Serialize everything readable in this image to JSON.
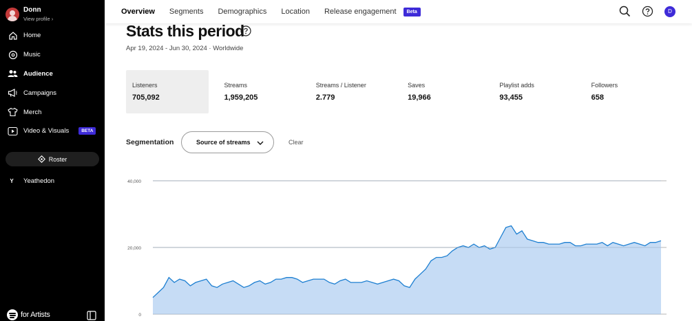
{
  "sidebar": {
    "profile": {
      "name": "Donn",
      "link": "View profile ›"
    },
    "items": [
      {
        "label": "Home",
        "icon": "home-icon"
      },
      {
        "label": "Music",
        "icon": "music-icon"
      },
      {
        "label": "Audience",
        "icon": "audience-icon"
      },
      {
        "label": "Campaigns",
        "icon": "megaphone-icon"
      },
      {
        "label": "Merch",
        "icon": "shirt-icon"
      },
      {
        "label": "Video & Visuals",
        "icon": "video-icon",
        "badge": "BETA"
      }
    ],
    "roster_label": "Roster",
    "artist": {
      "letter": "Y",
      "name": "Yeathedon"
    },
    "brand": "for Artists"
  },
  "topbar": {
    "tabs": [
      "Overview",
      "Segments",
      "Demographics",
      "Location",
      "Release engagement"
    ],
    "beta_badge": "Beta",
    "user_initial": "D"
  },
  "main": {
    "title": "Stats this period",
    "date_range": "Apr 19, 2024 - Jun 30, 2024 · Worldwide",
    "stats": [
      {
        "label": "Listeners",
        "value": "705,092"
      },
      {
        "label": "Streams",
        "value": "1,959,205"
      },
      {
        "label": "Streams / Listener",
        "value": "2.779"
      },
      {
        "label": "Saves",
        "value": "19,966"
      },
      {
        "label": "Playlist adds",
        "value": "93,455"
      },
      {
        "label": "Followers",
        "value": "658"
      }
    ],
    "segmentation": {
      "label": "Segmentation",
      "select_value": "Source of streams",
      "clear_label": "Clear"
    }
  },
  "colors": {
    "accent": "#3e2bd8",
    "series_line": "#1d7fd1",
    "series_fill": "#c6dcf5"
  },
  "chart_data": {
    "type": "area",
    "yticks": [
      "40,000",
      "20,000",
      "0"
    ],
    "ylim": [
      0,
      40000
    ],
    "grid": true,
    "series": [
      {
        "values": [
          5000,
          6500,
          8000,
          11000,
          9500,
          10500,
          10000,
          8500,
          9500,
          10000,
          10500,
          8500,
          8000,
          9000,
          9500,
          10000,
          9000,
          8000,
          8500,
          9500,
          10000,
          9000,
          9500,
          10500,
          10500,
          11000,
          11000,
          10500,
          9500,
          10000,
          10500,
          10500,
          10500,
          9500,
          9000,
          10000,
          10500,
          9500,
          9500,
          9500,
          10000,
          9500,
          9000,
          9500,
          10000,
          10500,
          10000,
          8500,
          8000,
          10500,
          12000,
          13500,
          16000,
          17000,
          17000,
          17500,
          19000,
          20000,
          20500,
          20000,
          21000,
          20000,
          20500,
          19500,
          20000,
          23000,
          26000,
          26500,
          24000,
          25000,
          22500,
          22000,
          21500,
          21500,
          21000,
          21000,
          21000,
          21500,
          21500,
          20500,
          20500,
          21000,
          21000,
          21000,
          21500,
          20500,
          21500,
          21000,
          20500,
          21000,
          21500,
          21000,
          20500,
          21500,
          21500,
          22000
        ]
      }
    ]
  }
}
